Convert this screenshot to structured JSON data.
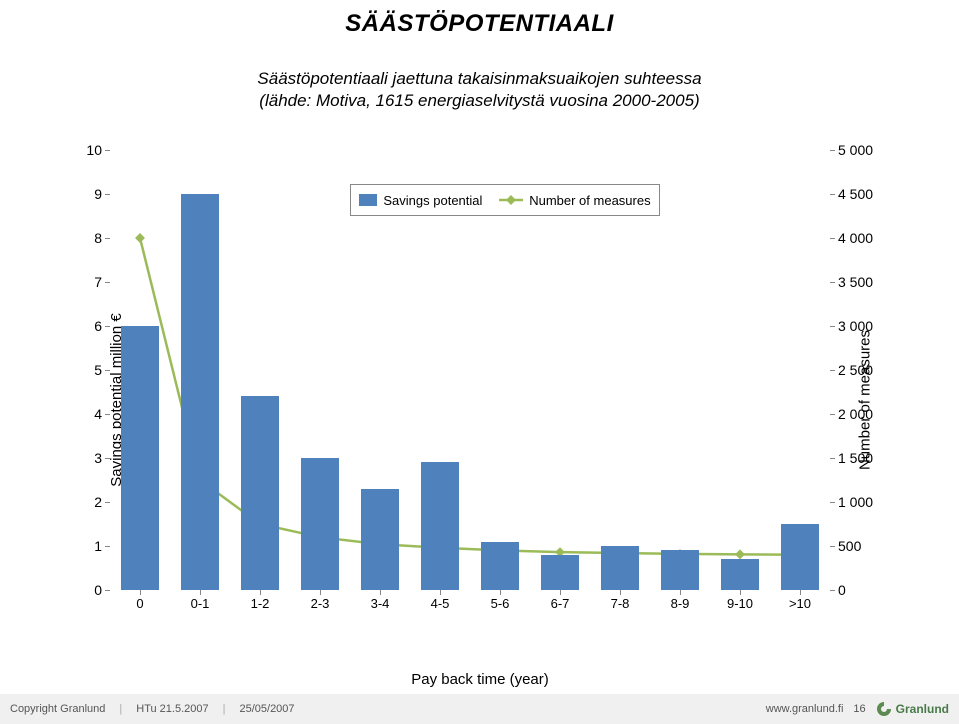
{
  "title": "SÄÄSTÖPOTENTIAALI",
  "subtitle_line1": "Säästöpotentiaali jaettuna takaisinmaksuaikojen suhteessa",
  "subtitle_line2": "(lähde: Motiva, 1615 energiaselvitystä vuosina 2000-2005)",
  "chart": {
    "type": "bar+line",
    "categories": [
      "0",
      "0-1",
      "1-2",
      "2-3",
      "3-4",
      "4-5",
      "5-6",
      "6-7",
      "7-8",
      "8-9",
      "9-10",
      ">10"
    ],
    "bar_values": [
      6.0,
      9.0,
      4.4,
      3.0,
      2.3,
      2.9,
      1.1,
      0.8,
      1.0,
      0.9,
      0.7,
      1.5
    ],
    "line_values": [
      4000,
      1250,
      750,
      600,
      520,
      480,
      450,
      430,
      420,
      410,
      405,
      400
    ],
    "bar_color": "#4f81bd",
    "line_color": "#9bbb59",
    "marker_color": "#9bbb59",
    "marker_size": 7,
    "line_width": 2.5,
    "bar_width_ratio": 0.62,
    "left_axis": {
      "min": 0,
      "max": 10,
      "step": 1,
      "label": "Savings potential million €"
    },
    "right_axis": {
      "min": 0,
      "max": 5000,
      "step": 500,
      "label": "Number of measures",
      "thousands_sep": " "
    },
    "x_label": "Pay back time (year)",
    "legend": {
      "bar": "Savings potential",
      "line": "Number of measures"
    },
    "tick_color": "#878787",
    "tick_len": 5
  },
  "footer": {
    "copyright": "Copyright Granlund",
    "author": "HTu 21.5.2007",
    "date": "25/05/2007",
    "url": "www.granlund.fi",
    "page": "16",
    "brand": "Granlund",
    "brand_color": "#5d8a50"
  }
}
